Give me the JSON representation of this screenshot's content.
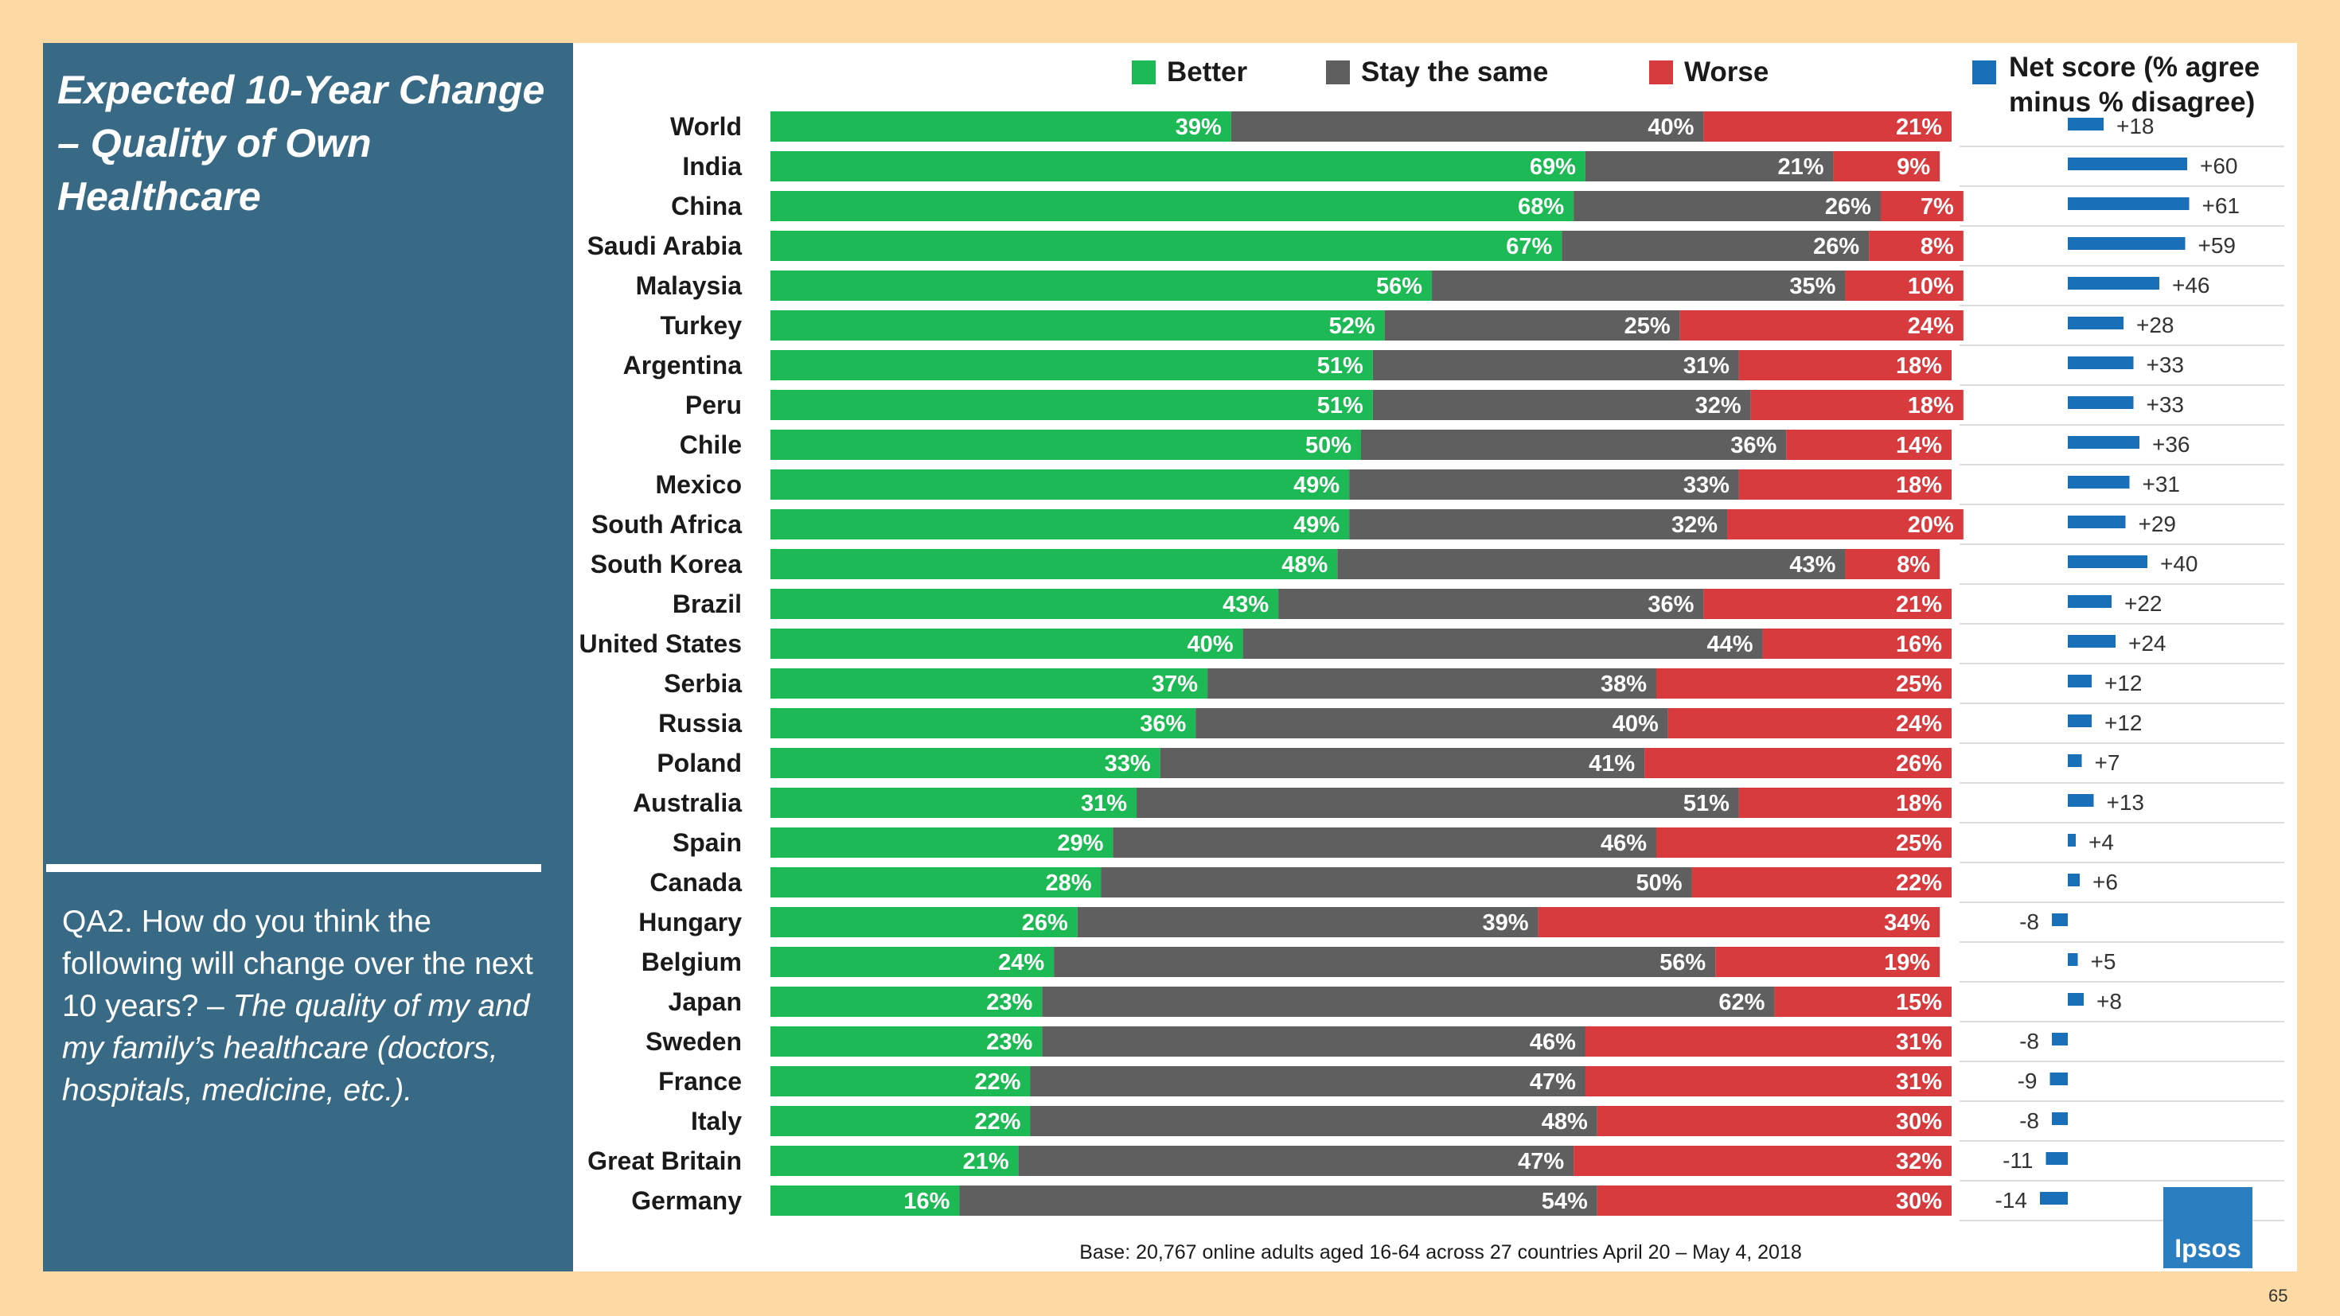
{
  "left_panel": {
    "title": "Expected 10-Year Change – Quality of Own Healthcare",
    "question_plain": "QA2. How do you think the following will change over the next 10 years? – ",
    "question_italic": "The quality of my and my family’s healthcare (doctors, hospitals, medicine, etc.)."
  },
  "colors": {
    "better": "#1db954",
    "same": "#5f5f5f",
    "worse": "#d73b3e",
    "net": "#1a6fb9"
  },
  "logo_text": "Ipsos",
  "page_number": "65",
  "chart_data": {
    "type": "bar",
    "subtype": "stacked-horizontal-100",
    "legend": [
      "Better",
      "Stay the same",
      "Worse"
    ],
    "legend_position": "top",
    "net_title": "Net score (% agree minus % disagree)",
    "base_note": "Base: 20,767 online adults aged 16-64 across 27 countries  April 20 – May 4, 2018",
    "categories": [
      "World",
      "India",
      "China",
      "Saudi Arabia",
      "Malaysia",
      "Turkey",
      "Argentina",
      "Peru",
      "Chile",
      "Mexico",
      "South Africa",
      "South Korea",
      "Brazil",
      "United States",
      "Serbia",
      "Russia",
      "Poland",
      "Australia",
      "Spain",
      "Canada",
      "Hungary",
      "Belgium",
      "Japan",
      "Sweden",
      "France",
      "Italy",
      "Great Britain",
      "Germany"
    ],
    "series": [
      {
        "name": "Better",
        "values": [
          39,
          69,
          68,
          67,
          56,
          52,
          51,
          51,
          50,
          49,
          49,
          48,
          43,
          40,
          37,
          36,
          33,
          31,
          29,
          28,
          26,
          24,
          23,
          23,
          22,
          22,
          21,
          16
        ]
      },
      {
        "name": "Stay the same",
        "values": [
          40,
          21,
          26,
          26,
          35,
          25,
          31,
          32,
          36,
          33,
          32,
          43,
          36,
          44,
          38,
          40,
          41,
          51,
          46,
          50,
          39,
          56,
          62,
          46,
          47,
          48,
          47,
          54
        ]
      },
      {
        "name": "Worse",
        "values": [
          21,
          9,
          7,
          8,
          10,
          24,
          18,
          18,
          14,
          18,
          20,
          8,
          21,
          16,
          25,
          24,
          26,
          18,
          25,
          22,
          34,
          19,
          15,
          31,
          31,
          30,
          32,
          30
        ]
      }
    ],
    "net_score": [
      18,
      60,
      61,
      59,
      46,
      28,
      33,
      33,
      36,
      31,
      29,
      40,
      22,
      24,
      12,
      12,
      7,
      13,
      4,
      6,
      -8,
      5,
      8,
      -8,
      -9,
      -8,
      -11,
      -14
    ],
    "net_labels": [
      "+18",
      "+60",
      "+61",
      "+59",
      "+46",
      "+28",
      "+33",
      "+33",
      "+36",
      "+31",
      "+29",
      "+40",
      "+22",
      "+24",
      "+12",
      "+12",
      "+7",
      "+13",
      "+4",
      "+6",
      "-8",
      "+5",
      "+8",
      "-8",
      "-9",
      "-8",
      "-11",
      "-14"
    ],
    "xlim": [
      0,
      100
    ]
  }
}
